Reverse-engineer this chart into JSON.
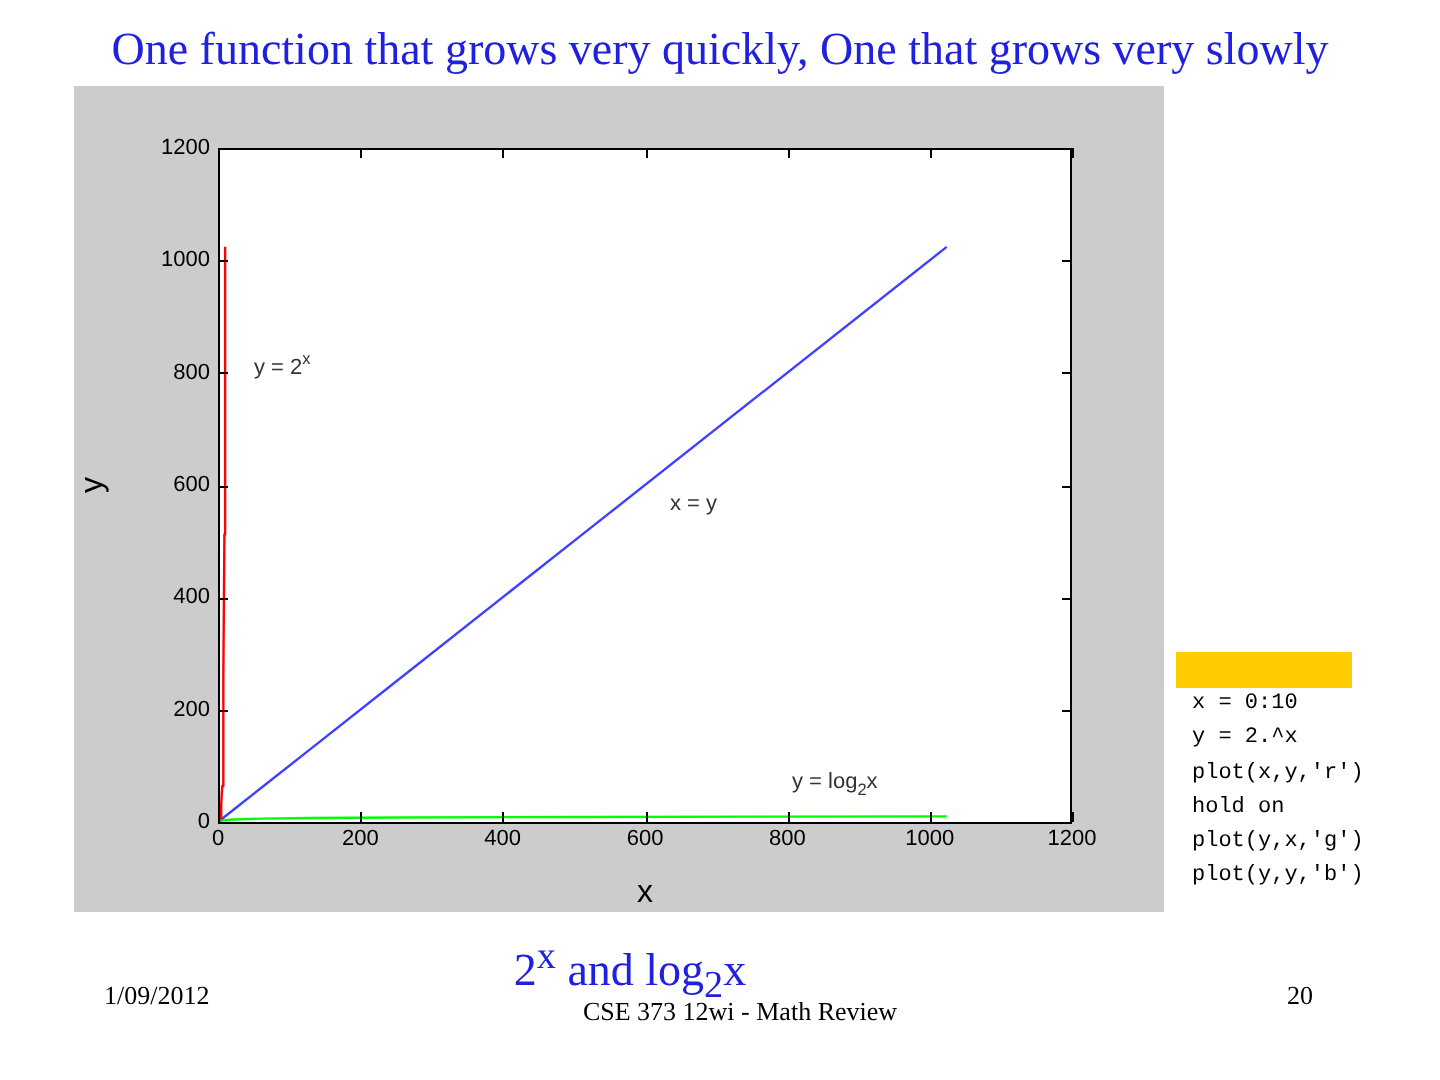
{
  "chart_data": {
    "type": "line",
    "title": "One function that grows very quickly, One that grows very slowly",
    "xlabel": "x",
    "ylabel": "y",
    "series": [
      {
        "color": "#ff0000",
        "x": [
          0,
          1,
          2,
          3,
          4,
          5,
          6,
          7,
          8,
          9,
          10
        ],
        "values": [
          1,
          2,
          4,
          8,
          16,
          32,
          64,
          128,
          256,
          512,
          1024
        ]
      },
      {
        "color": "#00ff00",
        "x": [
          1,
          2,
          4,
          8,
          16,
          32,
          64,
          128,
          256,
          512,
          1024
        ],
        "values": [
          0,
          1,
          2,
          3,
          4,
          5,
          6,
          7,
          8,
          9,
          10
        ]
      },
      {
        "color": "#4040ff",
        "x": [
          1,
          2,
          4,
          8,
          16,
          32,
          64,
          128,
          256,
          512,
          1024
        ],
        "values": [
          1,
          2,
          4,
          8,
          16,
          32,
          64,
          128,
          256,
          512,
          1024
        ]
      }
    ],
    "xlim": [
      0,
      1200
    ],
    "xticks": [
      0,
      200,
      400,
      600,
      800,
      1000,
      1200
    ],
    "ylim": [
      0,
      1200
    ],
    "yticks": [
      0,
      200,
      400,
      600,
      800,
      1000,
      1200
    ],
    "grid": false,
    "legend": false,
    "marker": "none",
    "line_style": "solid",
    "annotations": [
      "y = 2$^{x}$",
      "x = y",
      "y = log$_{2}$x",
      "2$^{x}$ and log$_{2}$x",
      "1/09/2012",
      "CSE 373 12wi - Math Review",
      "20",
      "x = 0:10",
      "y = 2.^x",
      "plot(x,y,'r')",
      "hold on",
      "plot(y,x,'g')",
      "plot(y,y,'b')"
    ]
  }
}
